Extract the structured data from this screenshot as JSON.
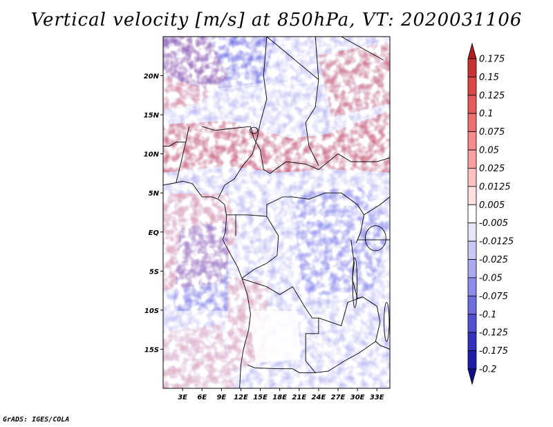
{
  "title": "Vertical velocity [m/s] at 850hPa, VT: 2020031106",
  "credit": "GrADS: IGES/COLA",
  "map": {
    "lon_range": [
      0,
      35
    ],
    "lat_range": [
      -20,
      25
    ],
    "lon_ticks": [
      {
        "value": 3,
        "label": "3E"
      },
      {
        "value": 6,
        "label": "6E"
      },
      {
        "value": 9,
        "label": "9E"
      },
      {
        "value": 12,
        "label": "12E"
      },
      {
        "value": 15,
        "label": "15E"
      },
      {
        "value": 18,
        "label": "18E"
      },
      {
        "value": 21,
        "label": "21E"
      },
      {
        "value": 24,
        "label": "24E"
      },
      {
        "value": 27,
        "label": "27E"
      },
      {
        "value": 30,
        "label": "30E"
      },
      {
        "value": 33,
        "label": "33E"
      }
    ],
    "lat_ticks": [
      {
        "value": 20,
        "label": "20N"
      },
      {
        "value": 15,
        "label": "15N"
      },
      {
        "value": 10,
        "label": "10N"
      },
      {
        "value": 5,
        "label": "5N"
      },
      {
        "value": 0,
        "label": "EQ"
      },
      {
        "value": -5,
        "label": "5S"
      },
      {
        "value": -10,
        "label": "10S"
      },
      {
        "value": -15,
        "label": "15S"
      }
    ]
  },
  "colorbar": {
    "labels": [
      "0.175",
      "0.15",
      "0.125",
      "0.1",
      "0.075",
      "0.05",
      "0.025",
      "0.0125",
      "0.005",
      "-0.005",
      "-0.0125",
      "-0.025",
      "-0.05",
      "-0.075",
      "-0.1",
      "-0.125",
      "-0.175",
      "-0.2"
    ],
    "colors": [
      "#b41e1e",
      "#c83232",
      "#dc4646",
      "#e65a5a",
      "#f07070",
      "#f58a8a",
      "#faa0a0",
      "#fcc0c0",
      "#fee0e0",
      "#ffffff",
      "#e6e6fa",
      "#c8c8f5",
      "#aaaaf0",
      "#8c8cea",
      "#6e6ee0",
      "#5050d2",
      "#3232be",
      "#1e1eaa",
      "#10108c"
    ]
  }
}
